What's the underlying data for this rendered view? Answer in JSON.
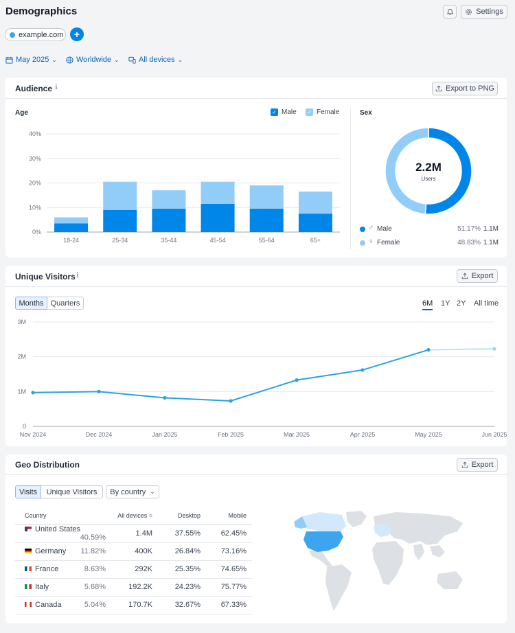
{
  "page": {
    "title": "Demographics",
    "settings_label": "Settings",
    "domain_chip": "example.com"
  },
  "filters": {
    "date": "May 2025",
    "region": "Worldwide",
    "devices": "All devices"
  },
  "audience": {
    "title": "Audience",
    "export_label": "Export to PNG",
    "age": {
      "title": "Age",
      "legend_male": "Male",
      "legend_female": "Female"
    },
    "sex": {
      "title": "Sex",
      "total": "2.2M",
      "total_label": "Users",
      "rows": [
        {
          "label": "Male",
          "pct": "51.17%",
          "count": "1.1M"
        },
        {
          "label": "Female",
          "pct": "48.83%",
          "count": "1.1M"
        }
      ]
    }
  },
  "visitors": {
    "title": "Unique Visitors",
    "export_label": "Export",
    "toggle": [
      "Months",
      "Quarters"
    ],
    "ranges": [
      "6M",
      "1Y",
      "2Y",
      "All time"
    ],
    "active_range": "6M"
  },
  "geo": {
    "title": "Geo Distribution",
    "export_label": "Export",
    "toggle": [
      "Visits",
      "Unique Visitors"
    ],
    "dropdown": "By country",
    "columns": [
      "Country",
      "All devices",
      "Desktop",
      "Mobile"
    ],
    "rows": [
      {
        "country": "United States",
        "share": "40.59%",
        "all": "1.4M",
        "desktop": "37.55%",
        "mobile": "62.45%"
      },
      {
        "country": "Germany",
        "share": "11.82%",
        "all": "400K",
        "desktop": "26.84%",
        "mobile": "73.16%"
      },
      {
        "country": "France",
        "share": "8.63%",
        "all": "292K",
        "desktop": "25.35%",
        "mobile": "74.65%"
      },
      {
        "country": "Italy",
        "share": "5.68%",
        "all": "192.2K",
        "desktop": "24.23%",
        "mobile": "75.77%"
      },
      {
        "country": "Canada",
        "share": "5.04%",
        "all": "170.7K",
        "desktop": "32.67%",
        "mobile": "67.33%"
      }
    ]
  },
  "colors": {
    "male": "#0085e8",
    "female": "#92ccf8",
    "line": "#2aa3df",
    "accent": "#0b5fb6"
  },
  "chart_data": [
    {
      "type": "bar",
      "stacked": true,
      "categories": [
        "18-24",
        "25-34",
        "35-44",
        "45-54",
        "55-64",
        "65+"
      ],
      "series": [
        {
          "name": "Male",
          "values": [
            3.5,
            9,
            9.5,
            11.5,
            9.5,
            7.5
          ]
        },
        {
          "name": "Female",
          "values": [
            2.5,
            11.5,
            7.5,
            9,
            9.5,
            9
          ]
        }
      ],
      "title": "Age",
      "ylim": [
        0,
        40
      ],
      "yticks": [
        "0%",
        "10%",
        "20%",
        "30%",
        "40%"
      ],
      "grid": true,
      "legend": "top-right"
    },
    {
      "type": "pie",
      "donut": true,
      "categories": [
        "Male",
        "Female"
      ],
      "values": [
        51.17,
        48.83
      ],
      "title": "Sex"
    },
    {
      "type": "line",
      "title": "Unique Visitors",
      "categories": [
        "Nov 2024",
        "Dec 2024",
        "Jan 2025",
        "Feb 2025",
        "Mar 2025",
        "Apr 2025",
        "May 2025",
        "Jun 2025"
      ],
      "values": [
        0.97,
        1.0,
        0.82,
        0.73,
        1.33,
        1.62,
        2.2,
        2.23
      ],
      "yticks": [
        "0",
        "1M",
        "2M",
        "3M"
      ],
      "ylim": [
        0,
        3
      ],
      "grid": true
    }
  ]
}
